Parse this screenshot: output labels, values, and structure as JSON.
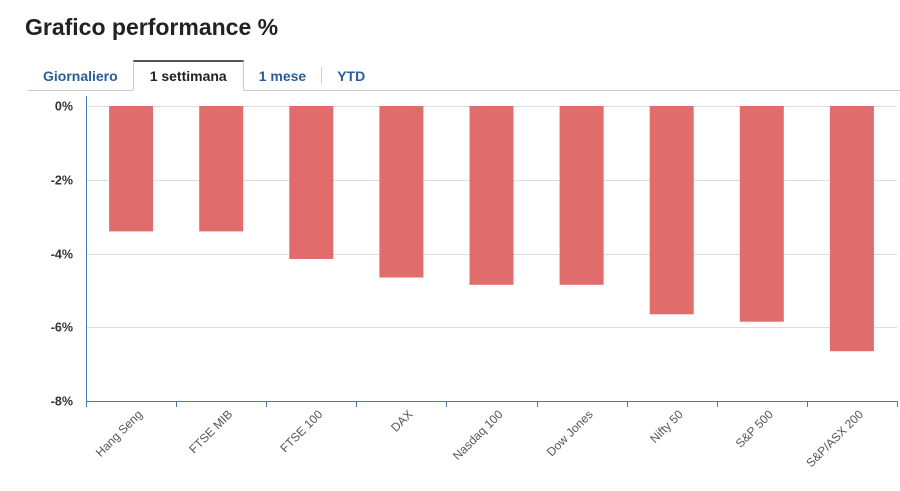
{
  "header": {
    "title": "Grafico performance %"
  },
  "tabs": [
    {
      "label": "Giornaliero",
      "active": false
    },
    {
      "label": "1 settimana",
      "active": true
    },
    {
      "label": "1 mese",
      "active": false
    },
    {
      "label": "YTD",
      "active": false
    }
  ],
  "colors": {
    "bar": "#e06c6c",
    "axis": "#4a78b5",
    "grid": "#dddddd",
    "tab_link": "#2a5d9a"
  },
  "chart_data": {
    "type": "bar",
    "title": "Grafico performance %",
    "xlabel": "",
    "ylabel": "",
    "ylim": [
      -8,
      0
    ],
    "yticks": [
      0,
      -2,
      -4,
      -6,
      -8
    ],
    "ytick_labels": [
      "0%",
      "-2%",
      "-4%",
      "-6%",
      "-8%"
    ],
    "grid": true,
    "categories": [
      "Hang Seng",
      "FTSE MIB",
      "FTSE 100",
      "DAX",
      "Nasdaq 100",
      "Dow Jones",
      "Nifty 50",
      "S&P 500",
      "S&P/ASX 200"
    ],
    "values": [
      -3.4,
      -3.4,
      -4.15,
      -4.65,
      -4.85,
      -4.85,
      -5.65,
      -5.85,
      -6.65
    ]
  }
}
